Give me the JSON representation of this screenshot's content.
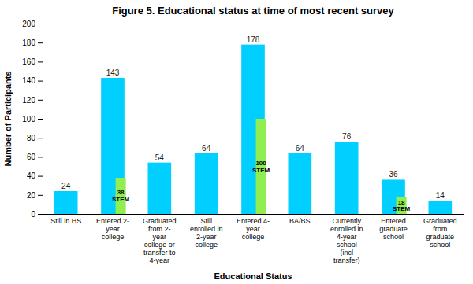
{
  "chart_data": {
    "type": "bar",
    "title": "Figure 5. Educational status at time of most recent survey",
    "xlabel": "Educational Status",
    "ylabel": "Number of Participants",
    "categories": [
      "Still in HS",
      "Entered 2-\nyear\ncollege",
      "Graduated\nfrom 2-\nyear\ncollege or\ntransfer to\n4-year",
      "Still\nenrolled in\n2-year\ncollege",
      "Entered 4-\nyear\ncollege",
      "BA/BS",
      "Currently\nenrolled in\n4-year\nschool\n(incl\ntransfer)",
      "Entered\ngraduate\nschool",
      "Graduated\nfrom\ngraduate\nschool"
    ],
    "series": [
      {
        "color": "#00CFFF",
        "values": [
          24,
          143,
          54,
          64,
          178,
          64,
          76,
          36,
          14
        ]
      },
      {
        "color": "#90EE50",
        "values": [
          null,
          38,
          null,
          null,
          100,
          null,
          null,
          18,
          null
        ],
        "value_labels": [
          null,
          "38\nSTEM",
          null,
          null,
          "100\nSTEM",
          null,
          null,
          "18\nSTEM",
          null
        ]
      }
    ],
    "ylim": [
      0,
      200
    ],
    "yticks": [
      0,
      20,
      40,
      60,
      80,
      100,
      120,
      140,
      160,
      180,
      200
    ],
    "grid": false,
    "data_labels": true
  }
}
